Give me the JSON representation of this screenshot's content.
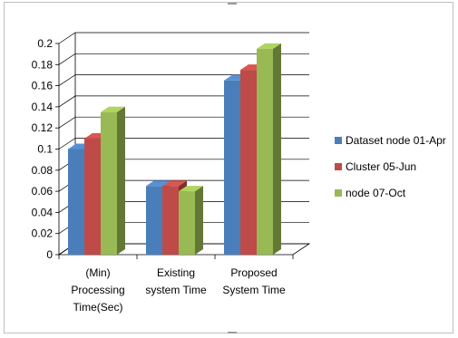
{
  "chart_data": {
    "type": "bar",
    "categories": [
      "(Min) Processing Time(Sec)",
      "Existing system Time",
      "Proposed System Time"
    ],
    "category_lines": [
      [
        "(Min)",
        "Processing",
        "Time(Sec)"
      ],
      [
        "Existing",
        "system Time"
      ],
      [
        "Proposed",
        "System Time"
      ]
    ],
    "series": [
      {
        "name": "Dataset node 01-Apr",
        "color": "#4a7ebb",
        "values": [
          0.1,
          0.065,
          0.165
        ]
      },
      {
        "name": "Cluster 05-Jun",
        "color": "#be4b48",
        "values": [
          0.11,
          0.065,
          0.175
        ]
      },
      {
        "name": "node 07-Oct",
        "color": "#98b954",
        "values": [
          0.135,
          0.06,
          0.195
        ]
      }
    ],
    "ylim": [
      0,
      0.2
    ],
    "yticks": [
      "0",
      "0.02",
      "0.04",
      "0.06",
      "0.08",
      "0.1",
      "0.12",
      "0.14",
      "0.16",
      "0.18",
      "0.2"
    ],
    "grid": true,
    "legend_position": "right",
    "style": "3d-clustered-column"
  }
}
